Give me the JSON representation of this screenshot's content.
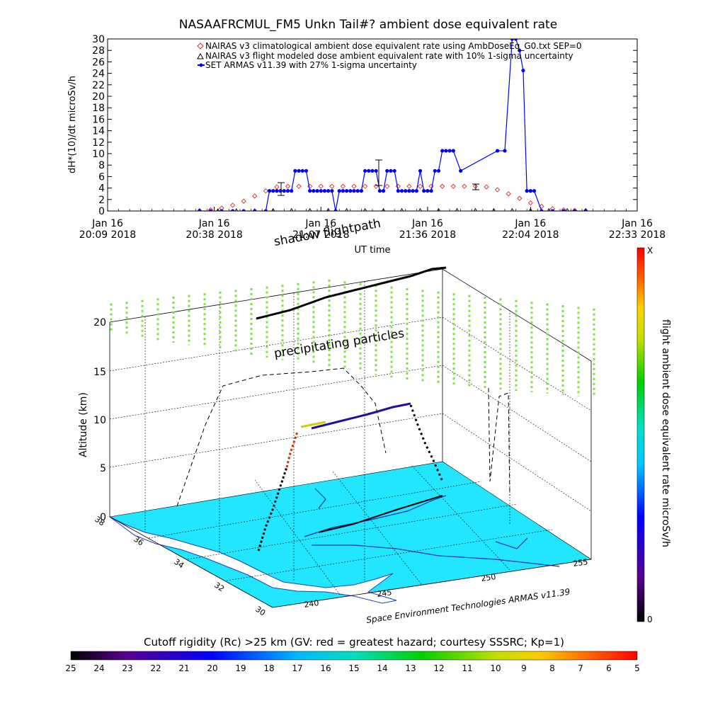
{
  "chart_data": [
    {
      "type": "line",
      "title": "NASAAFRCMUL_FM5 Unkn Tail#? ambient dose equivalent rate",
      "ylabel": "dH*(10)/dt microSv/h",
      "xlabel": "UT time",
      "ylim": [
        0,
        30
      ],
      "yticks": [
        "0",
        "2",
        "4",
        "6",
        "8",
        "10",
        "12",
        "14",
        "16",
        "18",
        "20",
        "22",
        "24",
        "26",
        "28",
        "30"
      ],
      "xticks": [
        {
          "t": 0,
          "line1": "Jan 16",
          "line2": "20:09 2018"
        },
        {
          "t": 29,
          "line1": "Jan 16",
          "line2": "20:38 2018"
        },
        {
          "t": 58,
          "line1": "Jan 16",
          "line2": "21:07 2018"
        },
        {
          "t": 87,
          "line1": "Jan 16",
          "line2": "21:36 2018"
        },
        {
          "t": 115,
          "line1": "Jan 16",
          "line2": "22:04 2018"
        },
        {
          "t": 144,
          "line1": "Jan 16",
          "line2": "22:33 2018"
        }
      ],
      "xlim_minutes": [
        0,
        144
      ],
      "legend": [
        {
          "label": "NAIRAS v3 climatological ambient dose equivalent rate using AmbDoseEq_G0.txt SEP=0",
          "color": "#d03030"
        },
        {
          "label": "NAIRAS v3 flight modeled dose ambient equivalent rate with 10% 1-sigma uncertainty",
          "color": "#000000"
        },
        {
          "label": "SET ARMAS v11.39 with 27% 1-sigma uncertainty",
          "color": "#0000ff"
        }
      ],
      "series": [
        {
          "name": "NAIRAS v3 climatological ambient dose equivalent rate using AmbDoseEq_G0.txt SEP=0",
          "color": "#d03030",
          "x": [
            25,
            28,
            31,
            34,
            37,
            40,
            43,
            46,
            49,
            52,
            55,
            58,
            61,
            64,
            67,
            70,
            73,
            76,
            79,
            82,
            85,
            88,
            91,
            94,
            97,
            100,
            103,
            106,
            109,
            112,
            115,
            118,
            121,
            124,
            127,
            130
          ],
          "y": [
            0.05,
            0.2,
            0.5,
            1,
            1.7,
            2.6,
            3.5,
            4.2,
            4.3,
            4.3,
            4.3,
            4.3,
            4.3,
            4.3,
            4.3,
            4.3,
            4.3,
            4.3,
            4.3,
            4.3,
            4.3,
            4.3,
            4.3,
            4.3,
            4.3,
            4.3,
            4.2,
            3.7,
            3.0,
            2.2,
            1.4,
            0.8,
            0.4,
            0.2,
            0.1,
            0.05
          ]
        },
        {
          "name": "NAIRAS v3 flight modeled dose ambient equivalent rate with 10% 1-sigma uncertainty",
          "color": "#000000",
          "x": [
            25,
            30,
            35,
            40,
            45,
            50,
            55,
            60,
            65,
            70,
            75,
            80,
            85,
            90,
            95,
            100,
            105,
            110,
            115,
            120,
            125,
            130
          ],
          "y": [
            0,
            0,
            0,
            0,
            0.05,
            0.05,
            0.05,
            0.05,
            0.05,
            0.05,
            0.05,
            0.05,
            0.05,
            0.05,
            0.05,
            0.05,
            0.05,
            0.05,
            0.05,
            0.05,
            0.05,
            0.05
          ]
        },
        {
          "name": "SET ARMAS v11.39 with 27% 1-sigma uncertainty",
          "color": "#0000ff",
          "x": [
            25,
            28,
            31,
            34,
            37,
            40,
            43,
            44,
            45,
            46,
            47,
            48,
            49,
            50,
            51,
            52,
            53,
            54,
            55,
            56,
            57,
            58,
            59,
            60,
            61,
            62,
            63,
            64,
            65,
            66,
            67,
            68,
            69,
            70,
            71,
            72,
            73,
            74,
            75,
            76,
            77,
            78,
            79,
            80,
            81,
            82,
            83,
            84,
            85,
            86,
            87,
            88,
            89,
            90,
            91,
            92,
            93,
            94,
            96,
            106,
            108,
            110,
            111,
            112,
            113,
            114,
            115,
            116,
            118,
            121,
            124,
            127,
            130
          ],
          "y": [
            0,
            0,
            0,
            0,
            0,
            0,
            0,
            3.5,
            3.5,
            3.5,
            3.5,
            3.5,
            3.5,
            3.5,
            7,
            7,
            7,
            7,
            3.5,
            3.5,
            3.5,
            3.5,
            3.5,
            3.5,
            3.5,
            0,
            3.5,
            3.5,
            3.5,
            3.5,
            3.5,
            3.5,
            3.5,
            7,
            7,
            7,
            7,
            3.5,
            3.5,
            7,
            7,
            7,
            3.5,
            3.5,
            3.5,
            3.5,
            3.5,
            3.5,
            7,
            3.5,
            3.5,
            3.5,
            7,
            7,
            10.5,
            10.5,
            10.5,
            10.5,
            7,
            10.5,
            10.5,
            30,
            30,
            28,
            24.5,
            3.5,
            3.5,
            3.5,
            0,
            0,
            0,
            0,
            0
          ]
        }
      ]
    },
    {
      "type": "scatter",
      "title": "",
      "ylabel": "Altitude (km)",
      "zticks": [
        "0",
        "5",
        "10",
        "15",
        "20"
      ],
      "lat_ticks": [
        "30",
        "32",
        "34",
        "36",
        "38"
      ],
      "lon_ticks": [
        "240",
        "245",
        "250",
        "255"
      ],
      "annotations": [
        "shadow flightpath",
        "precipitating particles",
        "Space Environment Technologies ARMAS v11.39"
      ],
      "dose_colorbar": {
        "label": "flight ambient dose equivalent rate microSv/h",
        "top": "X",
        "bottom": "0"
      },
      "rigidity_colorbar": {
        "label": "Cutoff rigidity (Rc) >25 km (GV: red = greatest hazard; courtesy SSSRC; Kp=1)",
        "ticks": [
          "25",
          "24",
          "23",
          "22",
          "21",
          "20",
          "19",
          "18",
          "17",
          "16",
          "15",
          "14",
          "13",
          "12",
          "11",
          "10",
          "9",
          "8",
          "7",
          "6",
          "5"
        ]
      }
    }
  ],
  "colors": {
    "surface": "#22e6ff",
    "particles": "#80e040",
    "nairas": "#d03030",
    "armas": "#0000ff"
  }
}
